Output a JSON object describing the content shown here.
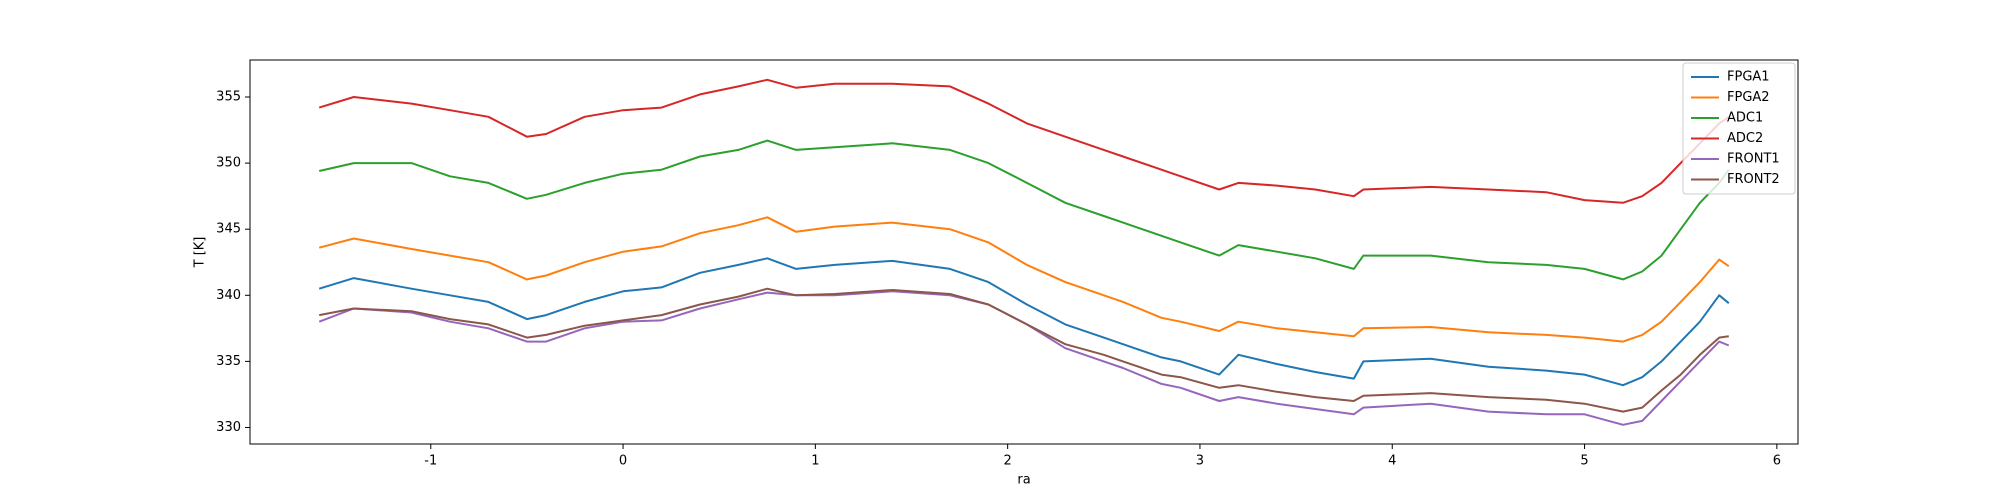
{
  "chart_data": {
    "type": "line",
    "xlabel": "ra",
    "ylabel": "T [K]",
    "xlim": [
      -1.94,
      6.11
    ],
    "ylim": [
      328.75,
      357.8
    ],
    "xticks": [
      -1,
      0,
      1,
      2,
      3,
      4,
      5,
      6
    ],
    "yticks": [
      330,
      335,
      340,
      345,
      350,
      355
    ],
    "grid": false,
    "legend": "upper right",
    "x": [
      -1.58,
      -1.4,
      -1.1,
      -0.9,
      -0.7,
      -0.5,
      -0.4,
      -0.2,
      0,
      0.2,
      0.4,
      0.6,
      0.75,
      0.9,
      1.1,
      1.4,
      1.7,
      1.9,
      2.1,
      2.3,
      2.5,
      2.6,
      2.8,
      2.9,
      3.1,
      3.2,
      3.4,
      3.6,
      3.8,
      3.85,
      4.2,
      4.5,
      4.8,
      5.0,
      5.2,
      5.3,
      5.4,
      5.5,
      5.6,
      5.7,
      5.75
    ],
    "series": [
      {
        "name": "FPGA1",
        "color": "#1f77b4",
        "values": [
          340.5,
          341.3,
          340.5,
          340,
          339.5,
          338.2,
          338.5,
          339.5,
          340.3,
          340.6,
          341.7,
          342.3,
          342.8,
          342,
          342.3,
          342.6,
          342,
          341,
          339.3,
          337.8,
          336.8,
          336.3,
          335.3,
          335,
          334,
          335.5,
          334.8,
          334.2,
          333.7,
          335,
          335.2,
          334.6,
          334.3,
          334,
          333.2,
          333.8,
          335,
          336.5,
          338,
          340,
          339.4
        ]
      },
      {
        "name": "FPGA2",
        "color": "#ff7f0e",
        "values": [
          343.6,
          344.3,
          343.5,
          343,
          342.5,
          341.2,
          341.5,
          342.5,
          343.3,
          343.7,
          344.7,
          345.3,
          345.9,
          344.8,
          345.2,
          345.5,
          345,
          344,
          342.3,
          341,
          340,
          339.5,
          338.3,
          338,
          337.3,
          338,
          337.5,
          337.2,
          336.9,
          337.5,
          337.6,
          337.2,
          337,
          336.8,
          336.5,
          337,
          338,
          339.5,
          341,
          342.7,
          342.2
        ]
      },
      {
        "name": "ADC1",
        "color": "#2ca02c",
        "values": [
          349.4,
          350,
          350,
          349,
          348.5,
          347.3,
          347.6,
          348.5,
          349.2,
          349.5,
          350.5,
          351,
          351.7,
          351,
          351.2,
          351.5,
          351,
          350,
          348.5,
          347,
          346,
          345.5,
          344.5,
          344,
          343,
          343.8,
          343.3,
          342.8,
          342,
          343,
          343,
          342.5,
          342.3,
          342,
          341.2,
          341.8,
          343,
          345,
          347,
          348.5,
          349.5
        ]
      },
      {
        "name": "ADC2",
        "color": "#d62728",
        "values": [
          354.2,
          355,
          354.5,
          354,
          353.5,
          352,
          352.2,
          353.5,
          354,
          354.2,
          355.2,
          355.8,
          356.3,
          355.7,
          356,
          356,
          355.8,
          354.5,
          353,
          352,
          351,
          350.5,
          349.5,
          349,
          348,
          348.5,
          348.3,
          348,
          347.5,
          348,
          348.2,
          348,
          347.8,
          347.2,
          347,
          347.5,
          348.5,
          350,
          351.5,
          353,
          353.5
        ]
      },
      {
        "name": "FRONT1",
        "color": "#9467bd",
        "values": [
          338,
          339,
          338.7,
          338,
          337.5,
          336.5,
          336.5,
          337.5,
          338,
          338.1,
          339,
          339.7,
          340.2,
          340,
          340,
          340.3,
          340,
          339.3,
          337.8,
          336,
          335,
          334.5,
          333.3,
          333,
          332,
          332.3,
          331.8,
          331.4,
          331,
          331.5,
          331.8,
          331.2,
          331,
          331,
          330.2,
          330.5,
          332,
          333.5,
          335,
          336.5,
          336.2
        ]
      },
      {
        "name": "FRONT2",
        "color": "#8c564b",
        "values": [
          338.5,
          339,
          338.8,
          338.2,
          337.8,
          336.8,
          337,
          337.7,
          338.1,
          338.5,
          339.3,
          339.9,
          340.5,
          340,
          340.1,
          340.4,
          340.1,
          339.3,
          337.8,
          336.3,
          335.5,
          335,
          334,
          333.8,
          333,
          333.2,
          332.7,
          332.3,
          332,
          332.4,
          332.6,
          332.3,
          332.1,
          331.8,
          331.2,
          331.5,
          332.8,
          334,
          335.5,
          336.8,
          336.9
        ]
      }
    ]
  }
}
